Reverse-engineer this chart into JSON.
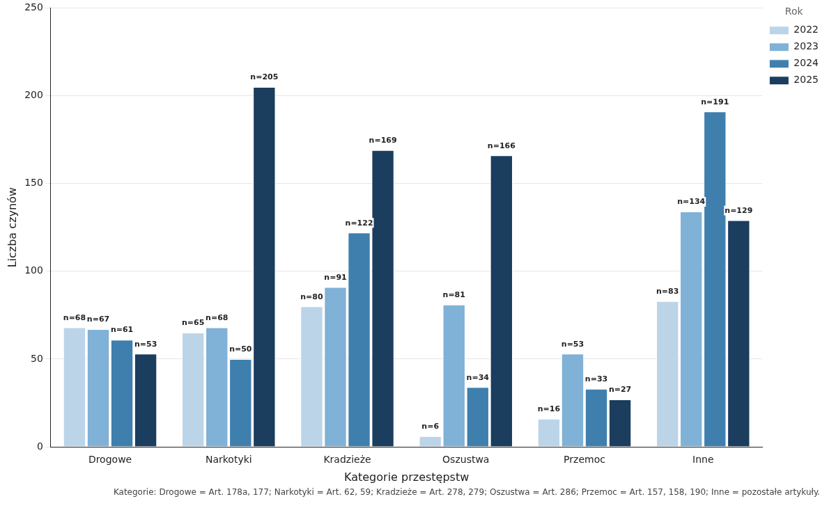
{
  "chart_data": {
    "type": "bar",
    "xlabel": "Kategorie przestępstw",
    "ylabel": "Liczba czynów",
    "legend_title": "Rok",
    "legend": "top right",
    "grid": "y",
    "categories": [
      "Drogowe",
      "Narkotyki",
      "Kradzieże",
      "Oszustwa",
      "Przemoc",
      "Inne"
    ],
    "ylim": [
      0,
      250
    ],
    "yticks": [
      0,
      50,
      100,
      150,
      200,
      250
    ],
    "series": [
      {
        "name": "2022",
        "color": "#bcd4e8",
        "values": [
          68,
          65,
          80,
          6,
          16,
          83
        ],
        "value_labels": [
          "n=68",
          "n=65",
          "n=80",
          "n=6",
          "n=16",
          "n=83"
        ]
      },
      {
        "name": "2023",
        "color": "#80b1d6",
        "values": [
          67,
          68,
          91,
          81,
          53,
          134
        ],
        "value_labels": [
          "n=67",
          "n=68",
          "n=91",
          "n=81",
          "n=53",
          "n=134"
        ]
      },
      {
        "name": "2024",
        "color": "#3f7fad",
        "values": [
          61,
          50,
          122,
          34,
          33,
          191
        ],
        "value_labels": [
          "n=61",
          "n=50",
          "n=122",
          "n=34",
          "n=33",
          "n=191"
        ]
      },
      {
        "name": "2025",
        "color": "#1b3d5e",
        "values": [
          53,
          205,
          169,
          166,
          27,
          129
        ],
        "value_labels": [
          "n=53",
          "n=205",
          "n=169",
          "n=166",
          "n=27",
          "n=129"
        ]
      }
    ],
    "annotations": [
      "Kategorie: Drogowe = Art. 178a, 177; Narkotyki = Art. 62, 59; Kradzieże = Art. 278, 279; Oszustwa = Art. 286; Przemoc = Art. 157, 158, 190; Inne = pozostałe artykuły."
    ]
  }
}
